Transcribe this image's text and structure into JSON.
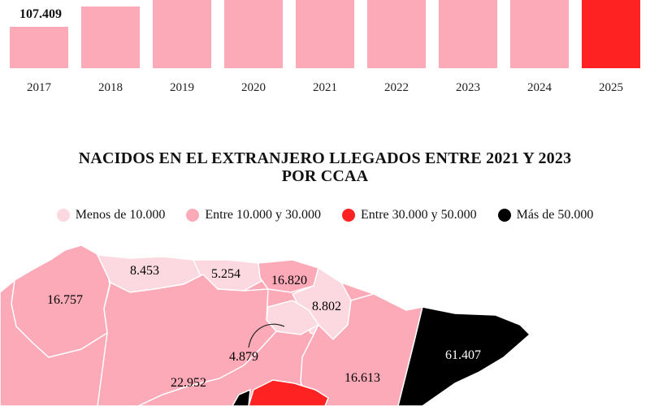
{
  "chart_data": [
    {
      "type": "bar",
      "categories": [
        "2017",
        "2018",
        "2019",
        "2020",
        "2021",
        "2022",
        "2023",
        "2024",
        "2025"
      ],
      "values": [
        107409,
        null,
        null,
        null,
        null,
        null,
        null,
        null,
        null
      ],
      "data_labels": [
        "107.409"
      ],
      "colors": {
        "default": "#fcaab8",
        "highlight": "#ff2222"
      },
      "highlight_category": "2025"
    },
    {
      "type": "choropleth",
      "title_lines": [
        "NACIDOS EN EL EXTRANJERO LLEGADOS ENTRE 2021 Y 2023",
        "POR CCAA"
      ],
      "legend": [
        {
          "label": "Menos de 10.000",
          "color": "#fcd8e0"
        },
        {
          "label": "Entre 10.000 y 30.000",
          "color": "#fcaab8"
        },
        {
          "label": "Entre 30.000 y 50.000",
          "color": "#ff2222"
        },
        {
          "label": "Más de 50.000",
          "color": "#000000"
        }
      ],
      "regions": [
        {
          "value": 16757,
          "label": "16.757",
          "class": 1
        },
        {
          "value": 8453,
          "label": "8.453",
          "class": 0
        },
        {
          "value": 5254,
          "label": "5.254",
          "class": 0
        },
        {
          "value": 16820,
          "label": "16.820",
          "class": 1
        },
        {
          "value": 8802,
          "label": "8.802",
          "class": 0
        },
        {
          "value": 4879,
          "label": "4.879",
          "class": 0
        },
        {
          "value": 22952,
          "label": "22.952",
          "class": 1
        },
        {
          "value": 16613,
          "label": "16.613",
          "class": 1
        },
        {
          "value": 61407,
          "label": "61.407",
          "class": 3
        }
      ]
    }
  ]
}
